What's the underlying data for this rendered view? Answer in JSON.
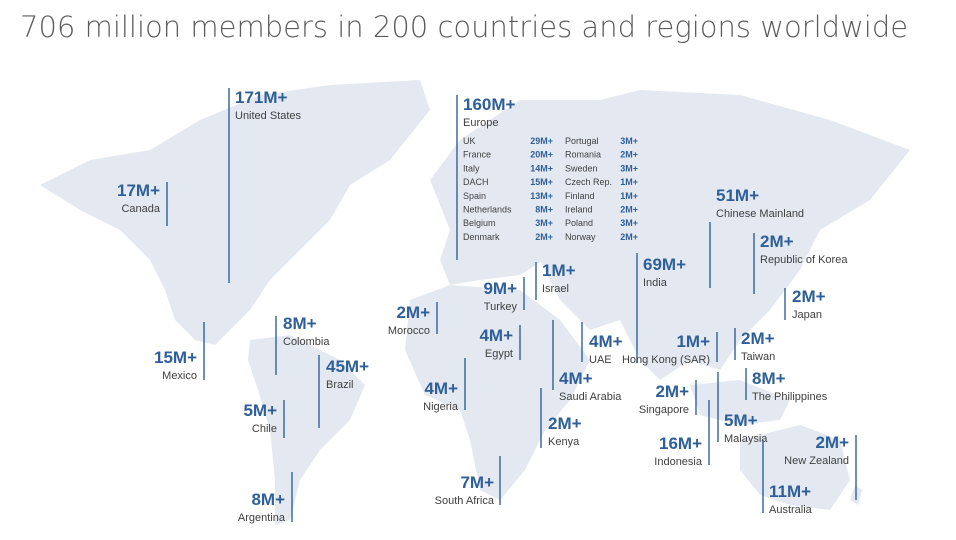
{
  "header": {
    "title": "706 million members in 200 countries and regions worldwide"
  },
  "regions": [
    {
      "value": "171M+",
      "name": "United States"
    },
    {
      "value": "17M+",
      "name": "Canada"
    },
    {
      "value": "15M+",
      "name": "Mexico"
    },
    {
      "value": "8M+",
      "name": "Colombia"
    },
    {
      "value": "45M+",
      "name": "Brazil"
    },
    {
      "value": "5M+",
      "name": "Chile"
    },
    {
      "value": "8M+",
      "name": "Argentina"
    },
    {
      "value": "160M+",
      "name": "Europe"
    },
    {
      "value": "2M+",
      "name": "Morocco"
    },
    {
      "value": "9M+",
      "name": "Turkey"
    },
    {
      "value": "1M+",
      "name": "Israel"
    },
    {
      "value": "4M+",
      "name": "Egypt"
    },
    {
      "value": "4M+",
      "name": "Nigeria"
    },
    {
      "value": "4M+",
      "name": "Saudi Arabia"
    },
    {
      "value": "4M+",
      "name": "UAE"
    },
    {
      "value": "2M+",
      "name": "Kenya"
    },
    {
      "value": "7M+",
      "name": "South Africa"
    },
    {
      "value": "69M+",
      "name": "India"
    },
    {
      "value": "51M+",
      "name": "Chinese Mainland"
    },
    {
      "value": "2M+",
      "name": "Republic of Korea"
    },
    {
      "value": "2M+",
      "name": "Japan"
    },
    {
      "value": "1M+",
      "name": "Hong Kong (SAR)"
    },
    {
      "value": "2M+",
      "name": "Taiwan"
    },
    {
      "value": "8M+",
      "name": "The Philippines"
    },
    {
      "value": "2M+",
      "name": "Singapore"
    },
    {
      "value": "5M+",
      "name": "Malaysia"
    },
    {
      "value": "16M+",
      "name": "Indonesia"
    },
    {
      "value": "2M+",
      "name": "New Zealand"
    },
    {
      "value": "11M+",
      "name": "Australia"
    }
  ],
  "europe_breakdown": [
    {
      "country": "UK",
      "value": "29M+"
    },
    {
      "country": "France",
      "value": "20M+"
    },
    {
      "country": "Italy",
      "value": "14M+"
    },
    {
      "country": "DACH",
      "value": "15M+"
    },
    {
      "country": "Spain",
      "value": "13M+"
    },
    {
      "country": "Netherlands",
      "value": "8M+"
    },
    {
      "country": "Belgium",
      "value": "3M+"
    },
    {
      "country": "Denmark",
      "value": "2M+"
    },
    {
      "country": "Portugal",
      "value": "3M+"
    },
    {
      "country": "Romania",
      "value": "2M+"
    },
    {
      "country": "Sweden",
      "value": "3M+"
    },
    {
      "country": "Czech Rep.",
      "value": "1M+"
    },
    {
      "country": "Finland",
      "value": "1M+"
    },
    {
      "country": "Ireland",
      "value": "2M+"
    },
    {
      "country": "Poland",
      "value": "3M+"
    },
    {
      "country": "Norway",
      "value": "2M+"
    }
  ]
}
